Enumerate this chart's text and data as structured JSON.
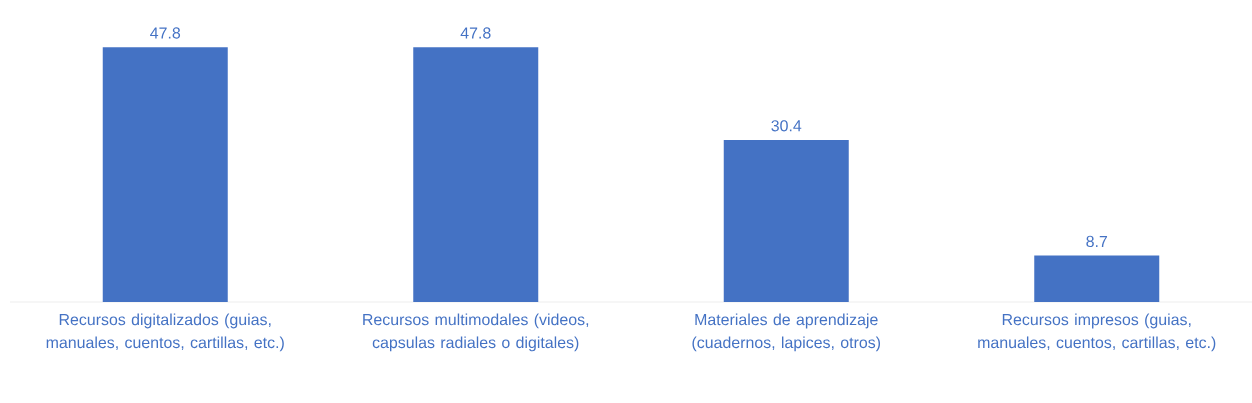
{
  "chart_data": {
    "type": "bar",
    "categories": [
      "Recursos digitalizados (guias, manuales, cuentos, cartillas, etc.)",
      "Recursos multimodales (videos, capsulas radiales o digitales)",
      "Materiales de aprendizaje (cuadernos, lapices, otros)",
      "Recursos impresos (guias, manuales, cuentos, cartillas, etc.)"
    ],
    "values": [
      47.8,
      47.8,
      30.4,
      8.7
    ],
    "color": "#4472c4",
    "data_labels": true
  }
}
